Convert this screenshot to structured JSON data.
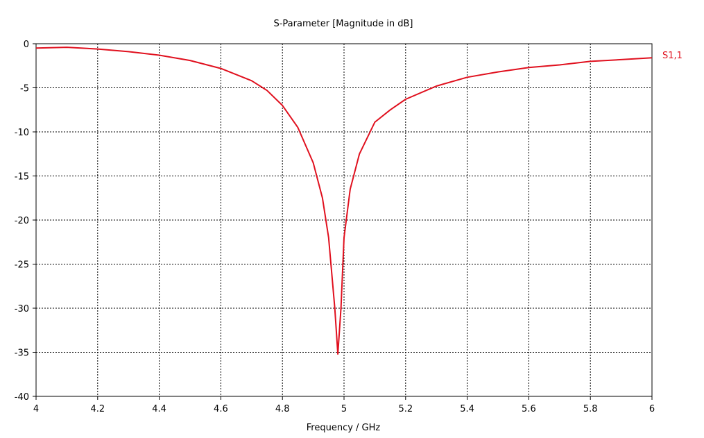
{
  "chart_data": {
    "type": "line",
    "title": "S-Parameter [Magnitude in dB]",
    "xlabel": "Frequency / GHz",
    "ylabel": "",
    "xlim": [
      4,
      6
    ],
    "ylim": [
      -40,
      0
    ],
    "xticks": [
      4,
      4.2,
      4.4,
      4.6,
      4.8,
      5,
      5.2,
      5.4,
      5.6,
      5.8,
      6
    ],
    "xtick_labels": [
      "4",
      "4.2",
      "4.4",
      "4.6",
      "4.8",
      "5",
      "5.2",
      "5.4",
      "5.6",
      "5.8",
      "6"
    ],
    "yticks": [
      0,
      -5,
      -10,
      -15,
      -20,
      -25,
      -30,
      -35,
      -40
    ],
    "ytick_labels": [
      "0",
      "-5",
      "-10",
      "-15",
      "-20",
      "-25",
      "-30",
      "-35",
      "-40"
    ],
    "grid": true,
    "legend_position": "right-top",
    "series": [
      {
        "name": "S1,1",
        "color": "#e0101e",
        "x": [
          4.0,
          4.1,
          4.2,
          4.3,
          4.4,
          4.5,
          4.6,
          4.7,
          4.75,
          4.8,
          4.85,
          4.9,
          4.93,
          4.95,
          4.97,
          4.98,
          4.99,
          5.0,
          5.02,
          5.05,
          5.1,
          5.15,
          5.2,
          5.3,
          5.4,
          5.5,
          5.6,
          5.7,
          5.8,
          5.9,
          6.0
        ],
        "y": [
          -0.5,
          -0.4,
          -0.6,
          -0.9,
          -1.3,
          -1.9,
          -2.8,
          -4.2,
          -5.3,
          -7.0,
          -9.5,
          -13.5,
          -17.5,
          -22.0,
          -30.0,
          -35.2,
          -30.0,
          -22.0,
          -16.5,
          -12.5,
          -8.9,
          -7.5,
          -6.3,
          -4.8,
          -3.8,
          -3.2,
          -2.7,
          -2.4,
          -2.0,
          -1.8,
          -1.6
        ]
      }
    ]
  }
}
